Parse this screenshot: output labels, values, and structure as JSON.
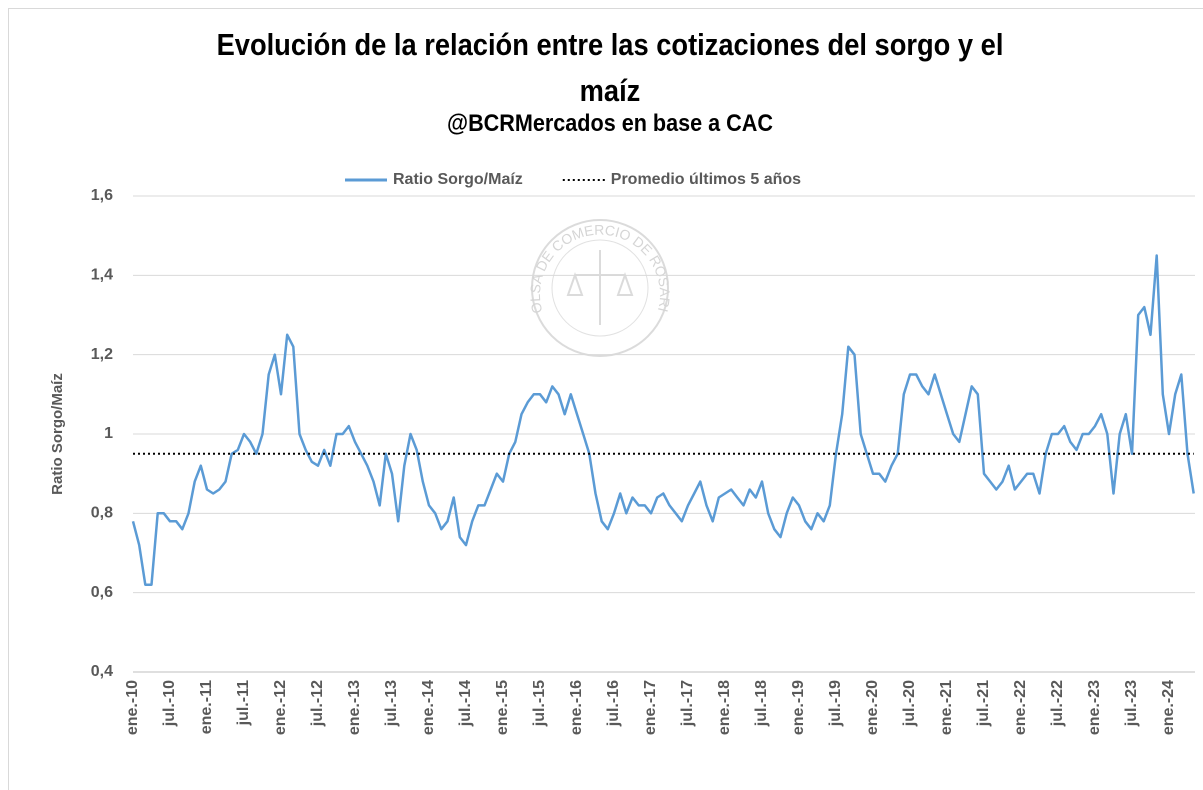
{
  "chart_data": {
    "type": "line",
    "title": "Evolución de la relación entre las cotizaciones del sorgo y el maíz",
    "subtitle": "@BCRMercados en base a CAC",
    "y_label": "Ratio Sorgo/Maíz",
    "watermark": "BOLSA DE COMERCIO DE ROSARIO",
    "categories": [
      "ene.-10",
      null,
      null,
      null,
      null,
      null,
      "jul.-10",
      null,
      null,
      null,
      null,
      null,
      "ene.-11",
      null,
      null,
      null,
      null,
      null,
      "jul.-11",
      null,
      null,
      null,
      null,
      null,
      "ene.-12",
      null,
      null,
      null,
      null,
      null,
      "jul.-12",
      null,
      null,
      null,
      null,
      null,
      "ene.-13",
      null,
      null,
      null,
      null,
      null,
      "jul.-13",
      null,
      null,
      null,
      null,
      null,
      "ene.-14",
      null,
      null,
      null,
      null,
      null,
      "jul.-14",
      null,
      null,
      null,
      null,
      null,
      "ene.-15",
      null,
      null,
      null,
      null,
      null,
      "jul.-15",
      null,
      null,
      null,
      null,
      null,
      "ene.-16",
      null,
      null,
      null,
      null,
      null,
      "jul.-16",
      null,
      null,
      null,
      null,
      null,
      "ene.-17",
      null,
      null,
      null,
      null,
      null,
      "jul.-17",
      null,
      null,
      null,
      null,
      null,
      "ene.-18",
      null,
      null,
      null,
      null,
      null,
      "jul.-18",
      null,
      null,
      null,
      null,
      null,
      "ene.-19",
      null,
      null,
      null,
      null,
      null,
      "jul.-19",
      null,
      null,
      null,
      null,
      null,
      "ene.-20",
      null,
      null,
      null,
      null,
      null,
      "jul.-20",
      null,
      null,
      null,
      null,
      null,
      "ene.-21",
      null,
      null,
      null,
      null,
      null,
      "jul.-21",
      null,
      null,
      null,
      null,
      null,
      "ene.-22",
      null,
      null,
      null,
      null,
      null,
      "jul.-22",
      null,
      null,
      null,
      null,
      null,
      "ene.-23",
      null,
      null,
      null,
      null,
      null,
      "jul.-23",
      null,
      null,
      null,
      null,
      null,
      "ene.-24",
      null,
      null,
      null,
      null
    ],
    "series": [
      {
        "name": "Ratio Sorgo/Maíz",
        "color": "#5b9bd5",
        "style": "solid",
        "values": [
          0.78,
          0.72,
          0.62,
          0.62,
          0.8,
          0.8,
          0.78,
          0.78,
          0.76,
          0.8,
          0.88,
          0.92,
          0.86,
          0.85,
          0.86,
          0.88,
          0.95,
          0.96,
          1.0,
          0.98,
          0.95,
          1.0,
          1.15,
          1.2,
          1.1,
          1.25,
          1.22,
          1.0,
          0.96,
          0.93,
          0.92,
          0.96,
          0.92,
          1.0,
          1.0,
          1.02,
          0.98,
          0.95,
          0.92,
          0.88,
          0.82,
          0.95,
          0.9,
          0.78,
          0.92,
          1.0,
          0.96,
          0.88,
          0.82,
          0.8,
          0.76,
          0.78,
          0.84,
          0.74,
          0.72,
          0.78,
          0.82,
          0.82,
          0.86,
          0.9,
          0.88,
          0.95,
          0.98,
          1.05,
          1.08,
          1.1,
          1.1,
          1.08,
          1.12,
          1.1,
          1.05,
          1.1,
          1.05,
          1.0,
          0.95,
          0.85,
          0.78,
          0.76,
          0.8,
          0.85,
          0.8,
          0.84,
          0.82,
          0.82,
          0.8,
          0.84,
          0.85,
          0.82,
          0.8,
          0.78,
          0.82,
          0.85,
          0.88,
          0.82,
          0.78,
          0.84,
          0.85,
          0.86,
          0.84,
          0.82,
          0.86,
          0.84,
          0.88,
          0.8,
          0.76,
          0.74,
          0.8,
          0.84,
          0.82,
          0.78,
          0.76,
          0.8,
          0.78,
          0.82,
          0.95,
          1.05,
          1.22,
          1.2,
          1.0,
          0.95,
          0.9,
          0.9,
          0.88,
          0.92,
          0.95,
          1.1,
          1.15,
          1.15,
          1.12,
          1.1,
          1.15,
          1.1,
          1.05,
          1.0,
          0.98,
          1.05,
          1.12,
          1.1,
          0.9,
          0.88,
          0.86,
          0.88,
          0.92,
          0.86,
          0.88,
          0.9,
          0.9,
          0.85,
          0.95,
          1.0,
          1.0,
          1.02,
          0.98,
          0.96,
          1.0,
          1.0,
          1.02,
          1.05,
          1.0,
          0.85,
          1.0,
          1.05,
          0.95,
          1.3,
          1.32,
          1.25,
          1.45,
          1.1,
          1.0,
          1.1,
          1.15,
          0.95,
          0.85
        ]
      },
      {
        "name": "Promedio últimos 5 años",
        "color": "#000000",
        "style": "dotted",
        "values": [
          0.95,
          0.95,
          0.95,
          0.95,
          0.95,
          0.95,
          0.95,
          0.95,
          0.95,
          0.95,
          0.95,
          0.95,
          0.95,
          0.95,
          0.95,
          0.95,
          0.95,
          0.95,
          0.95,
          0.95,
          0.95,
          0.95,
          0.95,
          0.95,
          0.95,
          0.95,
          0.95,
          0.95,
          0.95,
          0.95,
          0.95,
          0.95,
          0.95,
          0.95,
          0.95,
          0.95,
          0.95,
          0.95,
          0.95,
          0.95,
          0.95,
          0.95,
          0.95,
          0.95,
          0.95,
          0.95,
          0.95,
          0.95,
          0.95,
          0.95,
          0.95,
          0.95,
          0.95,
          0.95,
          0.95,
          0.95,
          0.95,
          0.95,
          0.95,
          0.95,
          0.95,
          0.95,
          0.95,
          0.95,
          0.95,
          0.95,
          0.95,
          0.95,
          0.95,
          0.95,
          0.95,
          0.95,
          0.95,
          0.95,
          0.95,
          0.95,
          0.95,
          0.95,
          0.95,
          0.95,
          0.95,
          0.95,
          0.95,
          0.95,
          0.95,
          0.95,
          0.95,
          0.95,
          0.95,
          0.95,
          0.95,
          0.95,
          0.95,
          0.95,
          0.95,
          0.95,
          0.95,
          0.95,
          0.95,
          0.95,
          0.95,
          0.95,
          0.95,
          0.95,
          0.95,
          0.95,
          0.95,
          0.95,
          0.95,
          0.95,
          0.95,
          0.95,
          0.95,
          0.95,
          0.95,
          0.95,
          0.95,
          0.95,
          0.95,
          0.95,
          0.95,
          0.95,
          0.95,
          0.95,
          0.95,
          0.95,
          0.95,
          0.95,
          0.95,
          0.95,
          0.95,
          0.95,
          0.95,
          0.95,
          0.95,
          0.95,
          0.95,
          0.95,
          0.95,
          0.95,
          0.95,
          0.95,
          0.95,
          0.95,
          0.95,
          0.95,
          0.95,
          0.95,
          0.95,
          0.95,
          0.95,
          0.95,
          0.95,
          0.95,
          0.95,
          0.95,
          0.95,
          0.95,
          0.95,
          0.95,
          0.95,
          0.95,
          0.95,
          0.95,
          0.95,
          0.95,
          0.95,
          0.95,
          0.95,
          0.95,
          0.95,
          0.95,
          0.95
        ]
      }
    ],
    "ylim": [
      0.4,
      1.6
    ],
    "yticks": [
      {
        "value": 0.4,
        "label": "0,4"
      },
      {
        "value": 0.6,
        "label": "0,6"
      },
      {
        "value": 0.8,
        "label": "0,8"
      },
      1,
      {
        "value": 1.2,
        "label": "1,2"
      },
      {
        "value": 1.4,
        "label": "1,4"
      },
      {
        "value": 1.6,
        "label": "1,6"
      }
    ],
    "grid": true,
    "legend": "top"
  }
}
